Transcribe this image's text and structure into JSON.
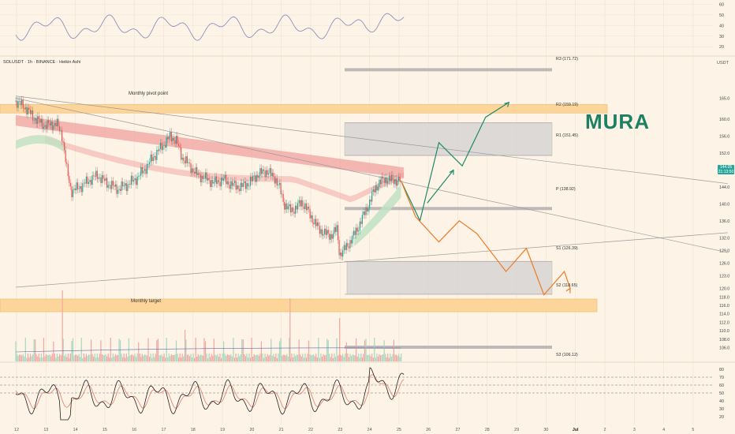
{
  "header": {
    "symbol": "SOLUSDT · 1h · BINANCE · Heikin Ashi",
    "unit": "USDT"
  },
  "brand": "MURA",
  "price_tag": {
    "value": "144.05",
    "sub": "21:13:50",
    "color": "#26a69a"
  },
  "colors": {
    "background": "#fdf3e6",
    "bull": "#26a69a",
    "bear": "#ef5350",
    "zone": "#fbd59a",
    "box": "#d7d3d2",
    "up_path": "#1f8a6b",
    "down_path": "#ef7a25"
  },
  "zones": {
    "monthly_pivot": {
      "label": "Monthly pivot point",
      "low": 161.5,
      "high": 163.5
    },
    "monthly_target": {
      "label": "Monthly target",
      "low": 114.5,
      "high": 117.5
    }
  },
  "pivots": [
    {
      "label": "R3 (171.72)",
      "value": 171.72
    },
    {
      "label": "R2 (159.19)",
      "value": 159.19
    },
    {
      "label": "R1 (151.45)",
      "value": 151.45
    },
    {
      "label": "P (138.92)",
      "value": 138.92
    },
    {
      "label": "S1 (126.39)",
      "value": 126.39
    },
    {
      "label": "S2 (118.65)",
      "value": 118.65
    },
    {
      "label": "S3 (106.12)",
      "value": 106.12
    }
  ],
  "boxes": [
    {
      "name": "resistance-box",
      "low": 151.45,
      "high": 159.19
    },
    {
      "name": "support-box",
      "low": 118.65,
      "high": 126.39
    }
  ],
  "chart_data": {
    "type": "line",
    "x_ticks": [
      "12",
      "13",
      "14",
      "15",
      "16",
      "17",
      "18",
      "19",
      "20",
      "21",
      "22",
      "23",
      "24",
      "25",
      "26",
      "27",
      "28",
      "29",
      "30",
      "Jul",
      "2",
      "3",
      "4",
      "5"
    ],
    "price_axis": {
      "ticks": [
        165.0,
        160.0,
        156.0,
        152.0,
        148.0,
        144.0,
        140.0,
        136.0,
        132.0,
        129.0,
        126.0,
        123.0,
        120.0,
        118.0,
        116.0,
        114.0,
        112.0,
        110.0,
        108.0,
        106.0
      ],
      "range": [
        103.5,
        171.8
      ]
    },
    "oscillator_top": {
      "ticks": [
        60,
        50,
        40,
        30,
        20
      ],
      "range": [
        12,
        64
      ]
    },
    "oscillator_bottom": {
      "ticks": [
        80,
        70,
        60,
        50,
        40,
        30,
        20
      ],
      "range": [
        12,
        88
      ],
      "levels": [
        70,
        60,
        50
      ]
    },
    "price": {
      "day": [
        11.5,
        11.8,
        12.1,
        12.5,
        12.9,
        13.1,
        13.25,
        13.4,
        13.7,
        14.0,
        14.3,
        14.6,
        15.0,
        15.3,
        15.6,
        15.9,
        16.2,
        16.5,
        16.8,
        17.0,
        17.2,
        17.4,
        17.7,
        18.0,
        18.3,
        18.6,
        18.9,
        19.2,
        19.5,
        19.8,
        20.1,
        20.4,
        20.55,
        20.7,
        20.9,
        21.1,
        21.3,
        21.5,
        21.7,
        21.9,
        22.1,
        22.3,
        22.5,
        22.6,
        22.8,
        23.0,
        23.2,
        23.4,
        23.6,
        23.8,
        23.95,
        24.2,
        24.45,
        24.7
      ],
      "value": [
        164.2,
        163.0,
        160.5,
        158.5,
        159.0,
        156.0,
        148.0,
        143.0,
        144.0,
        145.5,
        146.8,
        145.0,
        143.5,
        144.5,
        145.8,
        148.0,
        151.0,
        153.5,
        156.0,
        155.0,
        151.0,
        149.5,
        147.0,
        146.0,
        145.0,
        145.8,
        144.5,
        144.0,
        145.0,
        147.0,
        147.8,
        146.0,
        143.5,
        140.0,
        138.5,
        139.0,
        140.5,
        138.5,
        136.0,
        134.0,
        133.0,
        132.5,
        134.0,
        128.0,
        129.5,
        131.5,
        134.0,
        137.0,
        140.0,
        143.5,
        145.0,
        146.0,
        145.5,
        145.6
      ]
    },
    "projection_up": {
      "day": [
        24.7,
        25.35,
        26.0,
        26.8,
        27.6,
        28.4
      ],
      "value": [
        145.5,
        136.0,
        154.5,
        149.0,
        160.5,
        164.0
      ]
    },
    "projection_down": {
      "day": [
        24.7,
        25.2,
        26.0,
        26.7,
        27.3,
        28.3,
        29.0,
        29.6,
        30.3,
        30.5
      ],
      "value": [
        145.5,
        137.0,
        131.0,
        136.0,
        133.0,
        124.0,
        129.5,
        118.5,
        124.0,
        120.0
      ]
    },
    "trendlines": [
      {
        "from": [
          11.5,
          165.5
        ],
        "to": [
          35.9,
          144.8
        ]
      },
      {
        "from": [
          11.5,
          165.0
        ],
        "to": [
          35.9,
          128.5
        ]
      },
      {
        "from": [
          11.5,
          120.3
        ],
        "to": [
          35.9,
          133.2
        ]
      }
    ]
  }
}
